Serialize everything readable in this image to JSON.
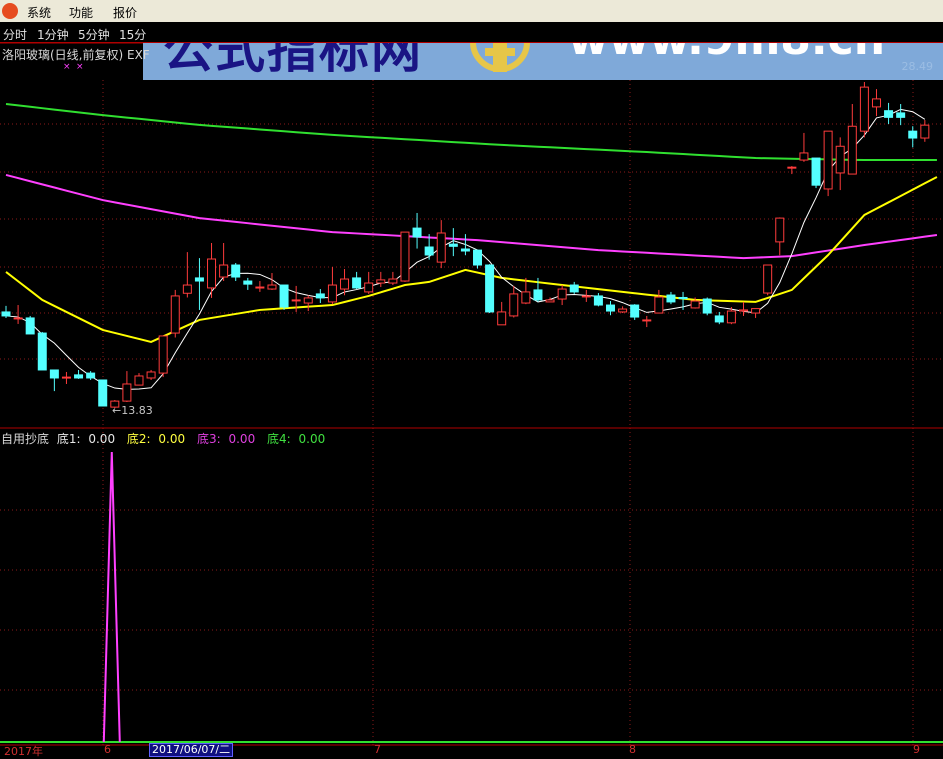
{
  "menu": {
    "items": [
      "系统",
      "功能",
      "报价"
    ]
  },
  "periods": [
    "分时",
    "1分钟",
    "5分钟",
    "15分"
  ],
  "title": "洛阳玻璃(日线,前复权) EXF",
  "banner": {
    "cn_text": "公式指标网",
    "url_text": "www.9m8.cn",
    "seal_text": "www.9m8.cn",
    "faint_value": "28.49"
  },
  "low_label": "←13.83",
  "indicator": {
    "name": "自用抄底",
    "items": [
      {
        "label": "底1:",
        "value": "0.00",
        "color": "#e8e8e8"
      },
      {
        "label": "底2:",
        "value": "0.00",
        "color": "#ffff40"
      },
      {
        "label": "底3:",
        "value": "0.00",
        "color": "#e040e0"
      },
      {
        "label": "底4:",
        "value": "0.00",
        "color": "#40e040"
      }
    ]
  },
  "time_axis": {
    "year": "2017年",
    "labels": [
      "6",
      "7",
      "8",
      "9"
    ],
    "cursor_date": "2017/06/07/二"
  },
  "colors": {
    "up": "#ff3c3c",
    "down": "#54ffff",
    "ma_white": "#ffffff",
    "ma_yellow": "#ffff00",
    "ma_magenta": "#ff40ff",
    "ma_green": "#30e030",
    "grid": "#8b1a1a"
  },
  "chart_data": [
    {
      "type": "candlestick",
      "price_range": [
        13.83,
        28.49
      ],
      "candles": [
        [
          18.15,
          17.97,
          18.42,
          17.88
        ],
        [
          17.88,
          17.88,
          18.46,
          17.61
        ],
        [
          17.88,
          17.16,
          17.97,
          17.16
        ],
        [
          17.2,
          15.54,
          17.25,
          15.54
        ],
        [
          15.54,
          15.18,
          15.54,
          14.59
        ],
        [
          15.18,
          15.22,
          15.45,
          14.91
        ],
        [
          15.32,
          15.18,
          15.54,
          15.14
        ],
        [
          15.4,
          15.18,
          15.49,
          15.09
        ],
        [
          15.09,
          13.92,
          15.09,
          13.92
        ],
        [
          13.87,
          14.14,
          14.19,
          13.83
        ],
        [
          14.14,
          14.91,
          15.49,
          14.1
        ],
        [
          14.86,
          15.27,
          15.4,
          14.86
        ],
        [
          15.18,
          15.45,
          15.54,
          15.09
        ],
        [
          15.4,
          17.07,
          17.07,
          15.22
        ],
        [
          17.2,
          18.87,
          19.14,
          17.0
        ],
        [
          18.99,
          19.36,
          20.84,
          18.8
        ],
        [
          19.68,
          19.54,
          20.57,
          18.24
        ],
        [
          19.23,
          20.53,
          21.25,
          18.78
        ],
        [
          19.72,
          20.26,
          21.25,
          19.54
        ],
        [
          20.26,
          19.72,
          20.35,
          19.54
        ],
        [
          19.54,
          19.4,
          19.68,
          19.14
        ],
        [
          19.27,
          19.27,
          19.54,
          19.05
        ],
        [
          19.18,
          19.36,
          19.9,
          19.14
        ],
        [
          19.36,
          18.37,
          19.36,
          18.24
        ],
        [
          18.68,
          18.69,
          19.32,
          18.15
        ],
        [
          18.55,
          18.78,
          18.9,
          18.19
        ],
        [
          18.96,
          18.78,
          19.18,
          18.55
        ],
        [
          18.6,
          19.36,
          20.17,
          18.5
        ],
        [
          19.18,
          19.63,
          20.08,
          18.9
        ],
        [
          19.68,
          19.23,
          19.95,
          19.18
        ],
        [
          19.05,
          19.45,
          19.95,
          18.96
        ],
        [
          19.45,
          19.59,
          19.95,
          19.27
        ],
        [
          19.45,
          19.63,
          19.95,
          19.36
        ],
        [
          19.54,
          21.74,
          21.74,
          19.5
        ],
        [
          21.92,
          21.52,
          22.6,
          21.0
        ],
        [
          21.07,
          20.71,
          21.65,
          20.5
        ],
        [
          20.39,
          21.7,
          22.28,
          20.12
        ],
        [
          21.2,
          21.1,
          21.92,
          20.66
        ],
        [
          20.98,
          20.89,
          21.65,
          20.7
        ],
        [
          20.93,
          20.26,
          20.93,
          20.1
        ],
        [
          20.26,
          18.15,
          20.3,
          18.1
        ],
        [
          17.57,
          18.15,
          18.6,
          17.57
        ],
        [
          17.97,
          18.96,
          19.32,
          17.9
        ],
        [
          18.55,
          19.05,
          19.68,
          18.5
        ],
        [
          19.14,
          18.69,
          19.68,
          18.6
        ],
        [
          18.6,
          18.69,
          18.8,
          18.6
        ],
        [
          18.73,
          19.18,
          19.36,
          18.46
        ],
        [
          19.36,
          19.05,
          19.5,
          18.96
        ],
        [
          18.87,
          18.87,
          19.14,
          18.6
        ],
        [
          18.87,
          18.46,
          19.0,
          18.4
        ],
        [
          18.46,
          18.19,
          18.64,
          18.0
        ],
        [
          18.15,
          18.28,
          18.4,
          18.1
        ],
        [
          18.46,
          17.92,
          18.5,
          17.79
        ],
        [
          17.79,
          17.79,
          17.97,
          17.47
        ],
        [
          18.1,
          18.82,
          19.14,
          18.1
        ],
        [
          18.91,
          18.6,
          19.05,
          18.5
        ],
        [
          18.8,
          18.75,
          19.05,
          18.24
        ],
        [
          18.33,
          18.64,
          18.8,
          18.3
        ],
        [
          18.73,
          18.1,
          18.8,
          18.0
        ],
        [
          17.97,
          17.7,
          18.15,
          17.6
        ],
        [
          17.66,
          18.19,
          18.37,
          17.6
        ],
        [
          18.19,
          18.24,
          18.6,
          17.97
        ],
        [
          18.1,
          18.3,
          18.3,
          17.88
        ],
        [
          19.0,
          20.26,
          20.26,
          18.9
        ],
        [
          21.3,
          22.37,
          22.4,
          20.7
        ],
        [
          24.66,
          24.66,
          24.71,
          24.35
        ],
        [
          24.98,
          25.3,
          26.2,
          24.9
        ],
        [
          25.07,
          23.85,
          25.07,
          23.72
        ],
        [
          23.68,
          26.28,
          26.28,
          23.36
        ],
        [
          24.4,
          25.6,
          26.0,
          23.63
        ],
        [
          24.35,
          26.5,
          27.5,
          24.35
        ],
        [
          26.28,
          28.26,
          28.49,
          26.0
        ],
        [
          27.37,
          27.73,
          28.17,
          26.96
        ],
        [
          27.2,
          26.9,
          27.55,
          26.6
        ],
        [
          27.1,
          26.9,
          27.5,
          26.55
        ],
        [
          26.28,
          25.97,
          26.5,
          25.55
        ],
        [
          25.97,
          26.55,
          26.78,
          25.8
        ]
      ],
      "ma_yellow": [
        [
          0,
          19.95
        ],
        [
          3,
          18.69
        ],
        [
          8,
          17.34
        ],
        [
          12,
          16.8
        ],
        [
          16,
          17.79
        ],
        [
          21,
          18.24
        ],
        [
          27,
          18.46
        ],
        [
          30,
          18.87
        ],
        [
          33,
          19.36
        ],
        [
          35,
          19.5
        ],
        [
          38,
          20.04
        ],
        [
          41,
          19.68
        ],
        [
          46,
          19.36
        ],
        [
          51,
          19.05
        ],
        [
          57,
          18.69
        ],
        [
          62,
          18.6
        ],
        [
          65,
          19.14
        ],
        [
          68,
          20.71
        ],
        [
          71,
          22.51
        ],
        [
          77,
          24.22
        ]
      ],
      "ma_magenta": [
        [
          0,
          24.31
        ],
        [
          8,
          23.18
        ],
        [
          16,
          22.37
        ],
        [
          27,
          21.74
        ],
        [
          39,
          21.38
        ],
        [
          49,
          20.93
        ],
        [
          61,
          20.57
        ],
        [
          65,
          20.66
        ],
        [
          71,
          21.16
        ],
        [
          77,
          21.61
        ]
      ],
      "ma_green": [
        [
          0,
          27.5
        ],
        [
          8,
          27.0
        ],
        [
          16,
          26.56
        ],
        [
          27,
          26.11
        ],
        [
          41,
          25.66
        ],
        [
          53,
          25.34
        ],
        [
          62,
          25.07
        ],
        [
          71,
          24.98
        ],
        [
          77,
          24.98
        ]
      ]
    },
    {
      "type": "line",
      "series": [
        {
          "name": "底3",
          "spike_index": 8,
          "spike_value": 1,
          "baseline": 0
        },
        {
          "name": "底4",
          "value": 0
        }
      ],
      "ylim": [
        0,
        1.08
      ]
    }
  ]
}
